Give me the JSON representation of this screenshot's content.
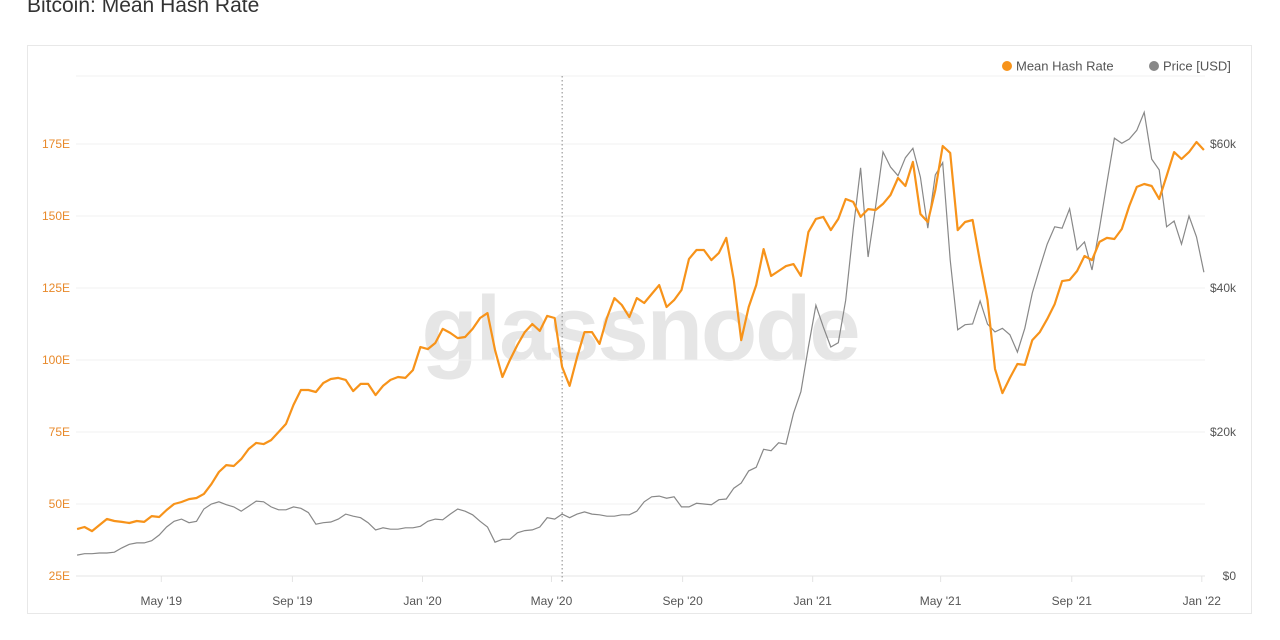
{
  "title": "Bitcoin: Mean Hash Rate",
  "watermark": "glassnode",
  "chart_data": {
    "type": "line",
    "title": "Bitcoin: Mean Hash Rate",
    "grid": true,
    "legend_placement": "top-right",
    "legend": [
      {
        "name": "Mean Hash Rate",
        "color": "#f7931a"
      },
      {
        "name": "Price [USD]",
        "color": "#888888"
      }
    ],
    "xlim": [
      "2019-02-10",
      "2022-01-04"
    ],
    "ylim_left": [
      25,
      200
    ],
    "ylim_right": [
      0,
      70000
    ],
    "xticks": [
      {
        "date": "2019-05-01",
        "label": "May '19"
      },
      {
        "date": "2019-09-01",
        "label": "Sep '19"
      },
      {
        "date": "2020-01-01",
        "label": "Jan '20"
      },
      {
        "date": "2020-05-01",
        "label": "May '20"
      },
      {
        "date": "2020-09-01",
        "label": "Sep '20"
      },
      {
        "date": "2021-01-01",
        "label": "Jan '21"
      },
      {
        "date": "2021-05-01",
        "label": "May '21"
      },
      {
        "date": "2021-09-01",
        "label": "Sep '21"
      },
      {
        "date": "2022-01-01",
        "label": "Jan '22"
      }
    ],
    "yticks_left": [
      {
        "value": 25,
        "label": "25E"
      },
      {
        "value": 50,
        "label": "50E"
      },
      {
        "value": 75,
        "label": "75E"
      },
      {
        "value": 100,
        "label": "100E"
      },
      {
        "value": 125,
        "label": "125E"
      },
      {
        "value": 150,
        "label": "150E"
      },
      {
        "value": 175,
        "label": "175E"
      }
    ],
    "yticks_right": [
      {
        "value": 0,
        "label": "$0"
      },
      {
        "value": 20000,
        "label": "$20k"
      },
      {
        "value": 40000,
        "label": "$40k"
      },
      {
        "value": 60000,
        "label": "$60k"
      }
    ],
    "annotation_line_date": "2020-05-11",
    "dates": [
      "2019-02-11",
      "2019-02-18",
      "2019-02-25",
      "2019-03-04",
      "2019-03-11",
      "2019-03-18",
      "2019-03-25",
      "2019-04-01",
      "2019-04-08",
      "2019-04-15",
      "2019-04-22",
      "2019-04-29",
      "2019-05-06",
      "2019-05-13",
      "2019-05-20",
      "2019-05-27",
      "2019-06-03",
      "2019-06-10",
      "2019-06-17",
      "2019-06-24",
      "2019-07-01",
      "2019-07-08",
      "2019-07-15",
      "2019-07-22",
      "2019-07-29",
      "2019-08-05",
      "2019-08-12",
      "2019-08-19",
      "2019-08-26",
      "2019-09-02",
      "2019-09-09",
      "2019-09-16",
      "2019-09-23",
      "2019-09-30",
      "2019-10-07",
      "2019-10-14",
      "2019-10-21",
      "2019-10-28",
      "2019-11-04",
      "2019-11-11",
      "2019-11-18",
      "2019-11-25",
      "2019-12-02",
      "2019-12-09",
      "2019-12-16",
      "2019-12-23",
      "2019-12-30",
      "2020-01-06",
      "2020-01-13",
      "2020-01-20",
      "2020-01-27",
      "2020-02-03",
      "2020-02-10",
      "2020-02-17",
      "2020-02-24",
      "2020-03-02",
      "2020-03-09",
      "2020-03-16",
      "2020-03-23",
      "2020-03-30",
      "2020-04-06",
      "2020-04-13",
      "2020-04-20",
      "2020-04-27",
      "2020-05-04",
      "2020-05-11",
      "2020-05-18",
      "2020-05-25",
      "2020-06-01",
      "2020-06-08",
      "2020-06-15",
      "2020-06-22",
      "2020-06-29",
      "2020-07-06",
      "2020-07-13",
      "2020-07-20",
      "2020-07-27",
      "2020-08-03",
      "2020-08-10",
      "2020-08-17",
      "2020-08-24",
      "2020-08-31",
      "2020-09-07",
      "2020-09-14",
      "2020-09-21",
      "2020-09-28",
      "2020-10-05",
      "2020-10-12",
      "2020-10-19",
      "2020-10-26",
      "2020-11-02",
      "2020-11-09",
      "2020-11-16",
      "2020-11-23",
      "2020-11-30",
      "2020-12-07",
      "2020-12-14",
      "2020-12-21",
      "2020-12-28",
      "2021-01-04",
      "2021-01-11",
      "2021-01-18",
      "2021-01-25",
      "2021-02-01",
      "2021-02-08",
      "2021-02-15",
      "2021-02-22",
      "2021-03-01",
      "2021-03-08",
      "2021-03-15",
      "2021-03-22",
      "2021-03-29",
      "2021-04-05",
      "2021-04-12",
      "2021-04-19",
      "2021-04-26",
      "2021-05-03",
      "2021-05-10",
      "2021-05-17",
      "2021-05-24",
      "2021-05-31",
      "2021-06-07",
      "2021-06-14",
      "2021-06-21",
      "2021-06-28",
      "2021-07-05",
      "2021-07-12",
      "2021-07-19",
      "2021-07-26",
      "2021-08-02",
      "2021-08-09",
      "2021-08-16",
      "2021-08-23",
      "2021-08-30",
      "2021-09-06",
      "2021-09-13",
      "2021-09-20",
      "2021-09-27",
      "2021-10-04",
      "2021-10-11",
      "2021-10-18",
      "2021-10-25",
      "2021-11-01",
      "2021-11-08",
      "2021-11-15",
      "2021-11-22",
      "2021-11-29",
      "2021-12-06",
      "2021-12-13",
      "2021-12-20",
      "2021-12-27",
      "2022-01-03"
    ],
    "series": [
      {
        "name": "Mean Hash Rate",
        "axis": "left",
        "unit": "E",
        "values": [
          41.3,
          42.0,
          40.6,
          42.7,
          44.8,
          44.1,
          43.8,
          43.4,
          44.1,
          43.8,
          45.8,
          45.5,
          47.9,
          50.0,
          50.7,
          51.7,
          52.1,
          53.5,
          56.9,
          61.1,
          63.5,
          63.2,
          65.6,
          69.1,
          71.2,
          70.8,
          72.2,
          75.0,
          77.8,
          84.4,
          89.6,
          89.6,
          88.9,
          92.0,
          93.4,
          93.8,
          93.1,
          89.2,
          91.7,
          91.7,
          87.8,
          91.0,
          93.1,
          94.1,
          93.8,
          96.5,
          104.5,
          103.8,
          105.9,
          110.8,
          109.4,
          107.6,
          108.0,
          110.8,
          114.6,
          116.3,
          103.5,
          94.1,
          100.0,
          105.2,
          109.7,
          112.5,
          110.1,
          115.3,
          114.6,
          97.6,
          91.0,
          101.0,
          109.7,
          109.7,
          105.6,
          114.6,
          121.5,
          119.1,
          114.9,
          121.5,
          119.8,
          122.9,
          126.0,
          118.4,
          120.8,
          124.3,
          135.1,
          138.2,
          138.2,
          134.7,
          137.2,
          142.4,
          127.8,
          106.9,
          118.4,
          126.0,
          138.5,
          129.2,
          130.9,
          132.6,
          133.3,
          129.2,
          144.4,
          149.0,
          149.7,
          145.1,
          149.0,
          155.9,
          154.9,
          149.7,
          152.4,
          152.1,
          154.2,
          157.3,
          163.2,
          160.4,
          168.8,
          150.7,
          147.9,
          159.0,
          174.3,
          171.9,
          145.1,
          147.9,
          148.6,
          134.0,
          120.8,
          96.9,
          88.5,
          93.8,
          98.6,
          98.3,
          106.9,
          109.7,
          114.2,
          119.4,
          127.4,
          127.8,
          130.9,
          136.1,
          134.7,
          141.0,
          142.4,
          142.0,
          145.5,
          153.5,
          160.1,
          161.1,
          160.4,
          155.9,
          163.9,
          172.2,
          169.8,
          172.2,
          175.7,
          172.9
        ]
      },
      {
        "name": "Price [USD]",
        "axis": "right",
        "unit": "USD",
        "values": [
          2900,
          3100,
          3100,
          3200,
          3200,
          3300,
          3900,
          4400,
          4600,
          4600,
          4900,
          5700,
          6800,
          7600,
          7900,
          7400,
          7600,
          9300,
          10000,
          10300,
          9900,
          9600,
          9000,
          9700,
          10400,
          10300,
          9600,
          9200,
          9200,
          9600,
          9400,
          8800,
          7200,
          7400,
          7500,
          7900,
          8600,
          8300,
          8100,
          7400,
          6400,
          6700,
          6500,
          6500,
          6700,
          6700,
          6900,
          7600,
          7900,
          7800,
          8600,
          9300,
          9000,
          8500,
          7600,
          6800,
          4700,
          5100,
          5100,
          6000,
          6300,
          6400,
          6800,
          8100,
          7900,
          8600,
          8100,
          8600,
          8900,
          8600,
          8500,
          8300,
          8300,
          8500,
          8500,
          9000,
          10300,
          11000,
          11100,
          10800,
          11000,
          9600,
          9600,
          10100,
          10000,
          9900,
          10600,
          10700,
          12200,
          12900,
          14600,
          15100,
          17600,
          17400,
          18500,
          18300,
          22600,
          25600,
          31800,
          37600,
          34600,
          31800,
          32400,
          38300,
          48100,
          56700,
          44300,
          51300,
          58900,
          56800,
          55600,
          58100,
          59400,
          55400,
          48300,
          55700,
          57400,
          43900,
          34200,
          34900,
          35000,
          38200,
          35000,
          33900,
          34400,
          33500,
          31100,
          34400,
          39300,
          42800,
          46100,
          48500,
          48300,
          51000,
          45300,
          46400,
          42500,
          48300,
          54600,
          60800,
          60100,
          60700,
          61900,
          64400,
          57900,
          56400,
          48500,
          49300,
          46100,
          50000,
          47100,
          42200
        ]
      }
    ]
  }
}
